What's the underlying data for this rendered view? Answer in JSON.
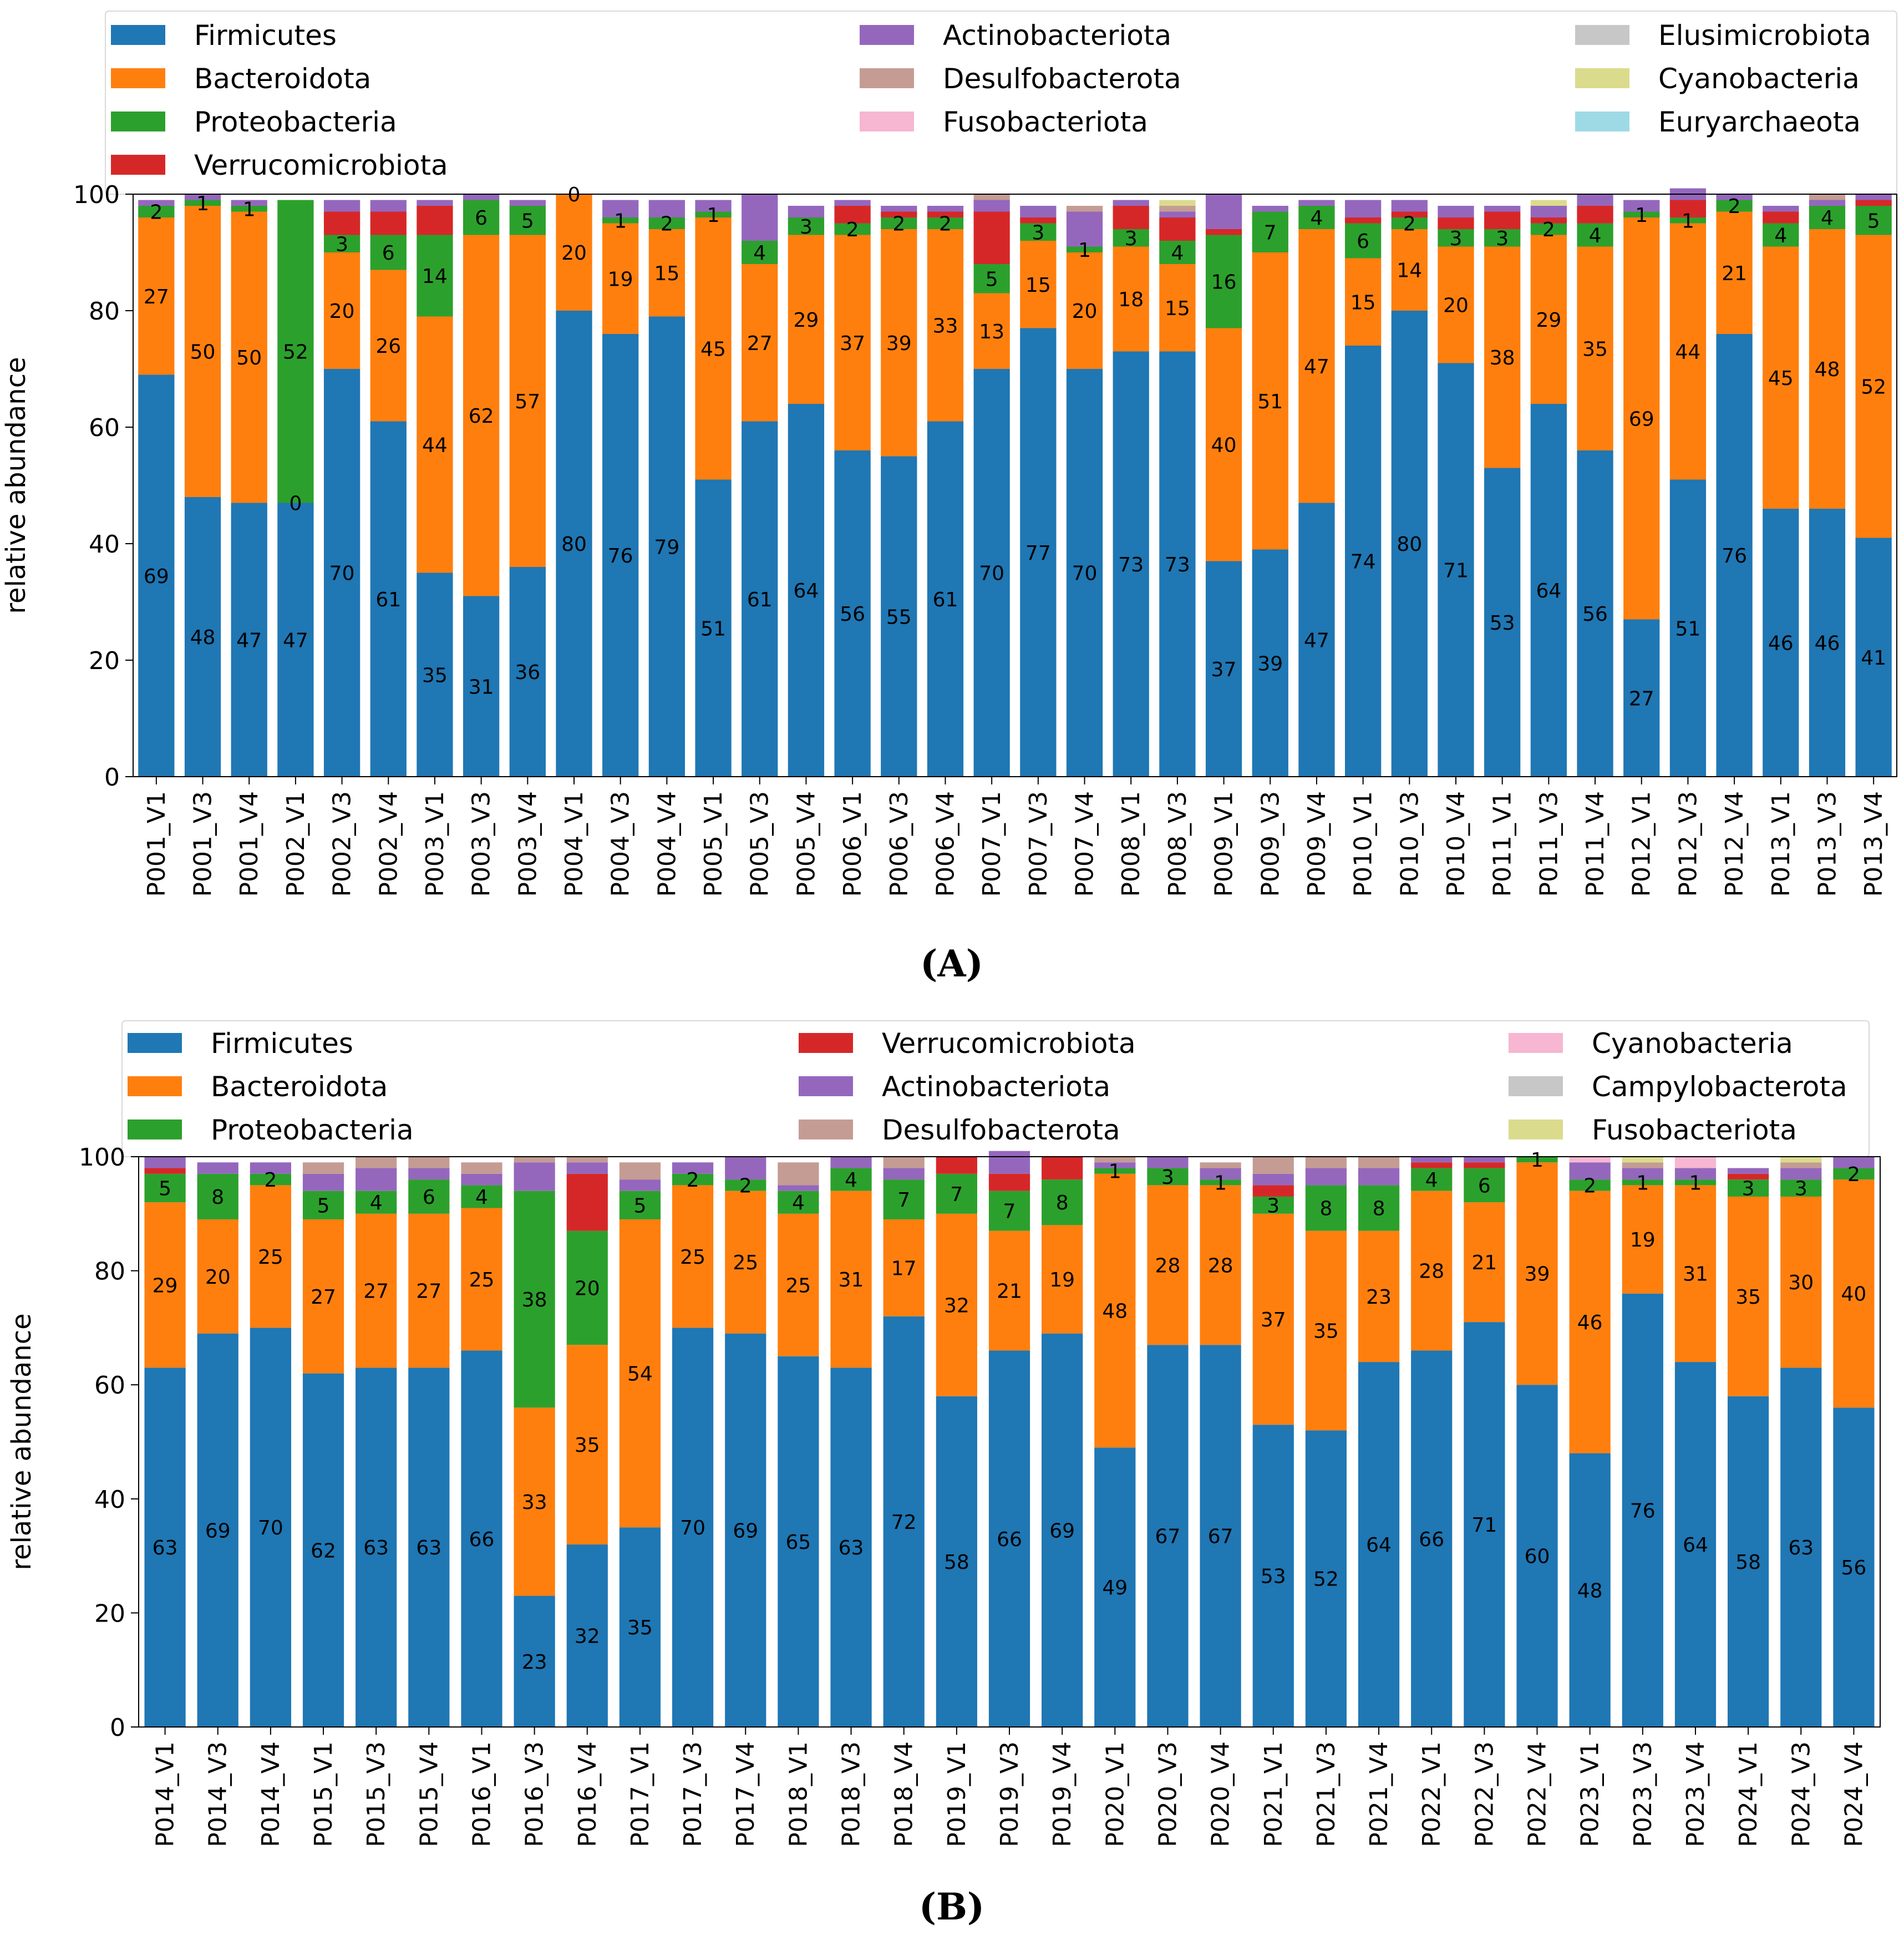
{
  "chart_data": [
    {
      "type": "bar",
      "stacked": true,
      "panel_label": "(A)",
      "ylabel": "relative abundance",
      "ylim": [
        0,
        100
      ],
      "yticks": [
        0,
        20,
        40,
        60,
        80,
        100
      ],
      "legend": [
        {
          "name": "Firmicutes",
          "color": "#1f77b4"
        },
        {
          "name": "Bacteroidota",
          "color": "#ff7f0e"
        },
        {
          "name": "Proteobacteria",
          "color": "#2ca02c"
        },
        {
          "name": "Verrucomicrobiota",
          "color": "#d62728"
        },
        {
          "name": "Actinobacteriota",
          "color": "#9467bd"
        },
        {
          "name": "Desulfobacterota",
          "color": "#c49c94"
        },
        {
          "name": "Fusobacteriota",
          "color": "#f7b6d2"
        },
        {
          "name": "Elusimicrobiota",
          "color": "#c7c7c7"
        },
        {
          "name": "Cyanobacteria",
          "color": "#dbdb8d"
        },
        {
          "name": "Euryarchaeota",
          "color": "#9edae5"
        }
      ],
      "categories": [
        "P001_V1",
        "P001_V3",
        "P001_V4",
        "P002_V1",
        "P002_V3",
        "P002_V4",
        "P003_V1",
        "P003_V3",
        "P003_V4",
        "P004_V1",
        "P004_V3",
        "P004_V4",
        "P005_V1",
        "P005_V3",
        "P005_V4",
        "P006_V1",
        "P006_V3",
        "P006_V4",
        "P007_V1",
        "P007_V3",
        "P007_V4",
        "P008_V1",
        "P008_V3",
        "P009_V1",
        "P009_V3",
        "P009_V4",
        "P010_V1",
        "P010_V3",
        "P010_V4",
        "P011_V1",
        "P011_V3",
        "P011_V4",
        "P012_V1",
        "P012_V3",
        "P012_V4",
        "P013_V1",
        "P013_V3",
        "P013_V4"
      ],
      "series": [
        {
          "name": "Firmicutes",
          "color": "#1f77b4",
          "values": [
            69,
            48,
            47,
            47,
            70,
            61,
            35,
            31,
            36,
            80,
            76,
            79,
            51,
            61,
            64,
            56,
            55,
            61,
            70,
            77,
            70,
            73,
            73,
            37,
            39,
            47,
            74,
            80,
            71,
            53,
            64,
            56,
            27,
            51,
            76,
            46,
            46,
            41
          ]
        },
        {
          "name": "Bacteroidota",
          "color": "#ff7f0e",
          "values": [
            27,
            50,
            50,
            0,
            20,
            26,
            44,
            62,
            57,
            20,
            19,
            15,
            45,
            27,
            29,
            37,
            39,
            33,
            13,
            15,
            20,
            18,
            15,
            40,
            51,
            47,
            15,
            14,
            20,
            38,
            29,
            35,
            69,
            44,
            21,
            45,
            48,
            52
          ]
        },
        {
          "name": "Proteobacteria",
          "color": "#2ca02c",
          "values": [
            2,
            1,
            1,
            52,
            3,
            6,
            14,
            6,
            5,
            0,
            1,
            2,
            1,
            4,
            3,
            2,
            2,
            2,
            5,
            3,
            1,
            3,
            4,
            16,
            7,
            4,
            6,
            2,
            3,
            3,
            2,
            4,
            1,
            1,
            2,
            4,
            4,
            5
          ]
        },
        {
          "name": "Verrucomicrobiota",
          "color": "#d62728",
          "values": [
            0,
            0,
            0,
            0,
            4,
            4,
            5,
            0,
            0,
            0,
            0,
            0,
            0,
            0,
            0,
            3,
            1,
            1,
            9,
            1,
            0,
            4,
            4,
            1,
            0,
            0,
            1,
            1,
            2,
            3,
            1,
            3,
            0,
            3,
            0,
            2,
            0,
            1
          ]
        },
        {
          "name": "Actinobacteriota",
          "color": "#9467bd",
          "values": [
            1,
            1,
            1,
            0,
            2,
            2,
            1,
            1,
            1,
            0,
            3,
            3,
            2,
            8,
            2,
            1,
            1,
            1,
            2,
            2,
            6,
            1,
            1,
            6,
            1,
            1,
            3,
            2,
            2,
            1,
            2,
            2,
            2,
            2,
            1,
            1,
            1,
            1
          ]
        },
        {
          "name": "Desulfobacterota",
          "color": "#c49c94",
          "values": [
            0,
            0,
            0,
            0,
            0,
            0,
            0,
            0,
            0,
            0,
            0,
            0,
            0,
            0,
            0,
            0,
            0,
            0,
            1,
            0,
            1,
            0,
            1,
            0,
            0,
            0,
            0,
            0,
            0,
            0,
            0,
            0,
            0,
            0,
            0,
            0,
            1,
            0
          ]
        },
        {
          "name": "Fusobacteriota",
          "color": "#f7b6d2",
          "values": [
            0,
            0,
            0,
            0,
            0,
            0,
            0,
            0,
            0,
            0,
            0,
            0,
            0,
            0,
            0,
            0,
            0,
            0,
            0,
            0,
            0,
            0,
            0,
            0,
            0,
            0,
            0,
            0,
            0,
            0,
            0,
            0,
            0,
            0,
            0,
            0,
            0,
            0
          ]
        },
        {
          "name": "Elusimicrobiota",
          "color": "#c7c7c7",
          "values": [
            0,
            0,
            0,
            0,
            0,
            0,
            0,
            0,
            0,
            0,
            0,
            0,
            0,
            0,
            0,
            0,
            0,
            0,
            0,
            0,
            0,
            0,
            0,
            0,
            0,
            0,
            0,
            0,
            0,
            0,
            0,
            0,
            0,
            0,
            0,
            0,
            0,
            0
          ]
        },
        {
          "name": "Cyanobacteria",
          "color": "#dbdb8d",
          "values": [
            0,
            0,
            0,
            0,
            0,
            0,
            0,
            0,
            0,
            0,
            0,
            0,
            0,
            0,
            0,
            0,
            0,
            0,
            0,
            0,
            0,
            0,
            1,
            0,
            0,
            0,
            0,
            0,
            0,
            0,
            1,
            0,
            0,
            0,
            0,
            0,
            0,
            0
          ]
        },
        {
          "name": "Euryarchaeota",
          "color": "#9edae5",
          "values": [
            0,
            0,
            0,
            0,
            0,
            0,
            0,
            0,
            0,
            0,
            0,
            0,
            0,
            0,
            0,
            0,
            0,
            0,
            0,
            0,
            0,
            0,
            0,
            0,
            0,
            0,
            0,
            0,
            0,
            0,
            0,
            0,
            0,
            0,
            0,
            0,
            0,
            0
          ]
        }
      ]
    },
    {
      "type": "bar",
      "stacked": true,
      "panel_label": "(B)",
      "ylabel": "relative abundance",
      "ylim": [
        0,
        100
      ],
      "yticks": [
        0,
        20,
        40,
        60,
        80,
        100
      ],
      "legend": [
        {
          "name": "Firmicutes",
          "color": "#1f77b4"
        },
        {
          "name": "Bacteroidota",
          "color": "#ff7f0e"
        },
        {
          "name": "Proteobacteria",
          "color": "#2ca02c"
        },
        {
          "name": "Verrucomicrobiota",
          "color": "#d62728"
        },
        {
          "name": "Actinobacteriota",
          "color": "#9467bd"
        },
        {
          "name": "Desulfobacterota",
          "color": "#c49c94"
        },
        {
          "name": "Cyanobacteria",
          "color": "#f7b6d2"
        },
        {
          "name": "Campylobacterota",
          "color": "#c7c7c7"
        },
        {
          "name": "Fusobacteriota",
          "color": "#dbdb8d"
        }
      ],
      "categories": [
        "P014_V1",
        "P014_V3",
        "P014_V4",
        "P015_V1",
        "P015_V3",
        "P015_V4",
        "P016_V1",
        "P016_V3",
        "P016_V4",
        "P017_V1",
        "P017_V3",
        "P017_V4",
        "P018_V1",
        "P018_V3",
        "P018_V4",
        "P019_V1",
        "P019_V3",
        "P019_V4",
        "P020_V1",
        "P020_V3",
        "P020_V4",
        "P021_V1",
        "P021_V3",
        "P021_V4",
        "P022_V1",
        "P022_V3",
        "P022_V4",
        "P023_V1",
        "P023_V3",
        "P023_V4",
        "P024_V1",
        "P024_V3",
        "P024_V4"
      ],
      "series": [
        {
          "name": "Firmicutes",
          "color": "#1f77b4",
          "values": [
            63,
            69,
            70,
            62,
            63,
            63,
            66,
            23,
            32,
            35,
            70,
            69,
            65,
            63,
            72,
            58,
            66,
            69,
            49,
            67,
            67,
            53,
            52,
            64,
            66,
            71,
            60,
            48,
            76,
            64,
            58,
            63,
            56
          ]
        },
        {
          "name": "Bacteroidota",
          "color": "#ff7f0e",
          "values": [
            29,
            20,
            25,
            27,
            27,
            27,
            25,
            33,
            35,
            54,
            25,
            25,
            25,
            31,
            17,
            32,
            21,
            19,
            48,
            28,
            28,
            37,
            35,
            23,
            28,
            21,
            39,
            46,
            19,
            31,
            35,
            30,
            40
          ]
        },
        {
          "name": "Proteobacteria",
          "color": "#2ca02c",
          "values": [
            5,
            8,
            2,
            5,
            4,
            6,
            4,
            38,
            20,
            5,
            2,
            2,
            4,
            4,
            7,
            7,
            7,
            8,
            1,
            3,
            1,
            3,
            8,
            8,
            4,
            6,
            1,
            2,
            1,
            1,
            3,
            3,
            2
          ]
        },
        {
          "name": "Verrucomicrobiota",
          "color": "#d62728",
          "values": [
            1,
            0,
            0,
            0,
            0,
            0,
            0,
            0,
            10,
            0,
            0,
            0,
            0,
            0,
            0,
            3,
            3,
            4,
            0,
            0,
            0,
            2,
            0,
            0,
            1,
            1,
            0,
            0,
            0,
            0,
            1,
            0,
            0
          ]
        },
        {
          "name": "Actinobacteriota",
          "color": "#9467bd",
          "values": [
            2,
            2,
            2,
            3,
            4,
            2,
            2,
            5,
            2,
            2,
            2,
            4,
            1,
            2,
            2,
            0,
            4,
            0,
            1,
            2,
            2,
            2,
            3,
            3,
            1,
            1,
            0,
            3,
            2,
            2,
            1,
            2,
            2
          ]
        },
        {
          "name": "Desulfobacterota",
          "color": "#c49c94",
          "values": [
            0,
            0,
            0,
            2,
            2,
            2,
            2,
            1,
            1,
            3,
            0,
            0,
            4,
            0,
            2,
            0,
            0,
            0,
            1,
            0,
            1,
            3,
            2,
            2,
            0,
            0,
            0,
            0,
            1,
            0,
            0,
            1,
            0
          ]
        },
        {
          "name": "Cyanobacteria",
          "color": "#f7b6d2",
          "values": [
            0,
            0,
            0,
            0,
            0,
            0,
            0,
            0,
            0,
            0,
            0,
            0,
            0,
            0,
            0,
            0,
            0,
            0,
            0,
            0,
            0,
            0,
            0,
            0,
            0,
            0,
            0,
            1,
            0,
            2,
            0,
            0,
            0
          ]
        },
        {
          "name": "Campylobacterota",
          "color": "#c7c7c7",
          "values": [
            0,
            0,
            0,
            0,
            0,
            0,
            0,
            0,
            0,
            0,
            0,
            0,
            0,
            0,
            0,
            0,
            0,
            0,
            0,
            0,
            0,
            0,
            0,
            0,
            0,
            0,
            0,
            0,
            0,
            0,
            0,
            0,
            0
          ]
        },
        {
          "name": "Fusobacteriota",
          "color": "#dbdb8d",
          "values": [
            0,
            0,
            0,
            0,
            0,
            0,
            0,
            0,
            0,
            0,
            0,
            0,
            0,
            0,
            0,
            0,
            0,
            0,
            0,
            0,
            0,
            0,
            0,
            0,
            0,
            0,
            0,
            0,
            1,
            0,
            0,
            1,
            0
          ]
        }
      ]
    }
  ]
}
